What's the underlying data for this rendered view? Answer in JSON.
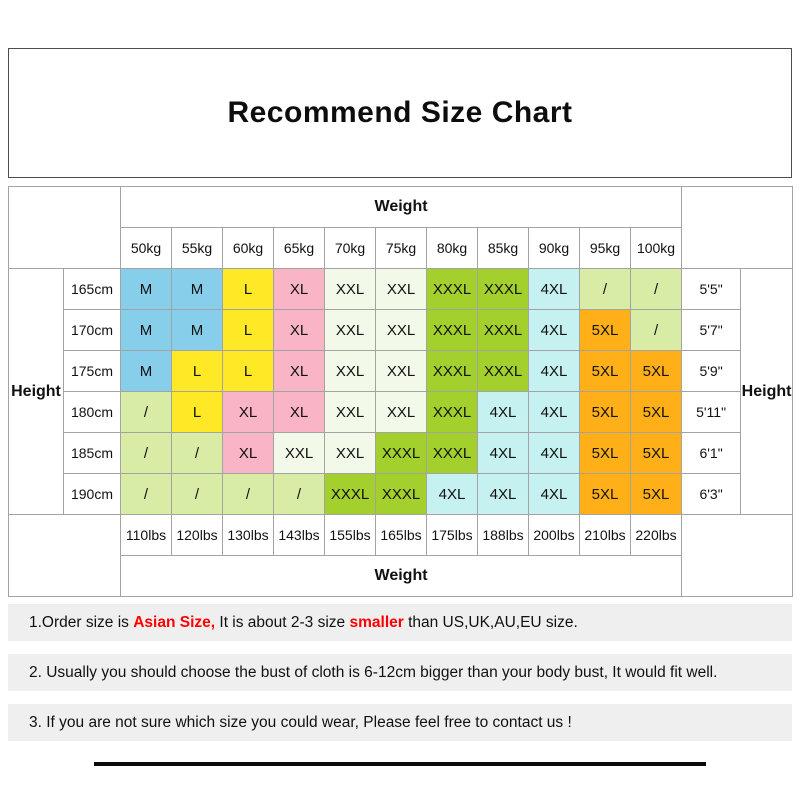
{
  "colors": {
    "note_background": "#EFEFEF",
    "note_highlight": "#FF0000"
  },
  "chart_data": {
    "type": "table",
    "title": "Recommend Size Chart",
    "axis_labels": {
      "weight": "Weight",
      "height": "Height"
    },
    "columns_kg": [
      "50kg",
      "55kg",
      "60kg",
      "65kg",
      "70kg",
      "75kg",
      "80kg",
      "85kg",
      "90kg",
      "95kg",
      "100kg"
    ],
    "columns_lbs": [
      "110lbs",
      "120lbs",
      "130lbs",
      "143lbs",
      "155lbs",
      "165lbs",
      "175lbs",
      "188lbs",
      "200lbs",
      "210lbs",
      "220lbs"
    ],
    "rows": [
      {
        "height_cm": "165cm",
        "height_ft": "5'5\"",
        "sizes": [
          "M",
          "M",
          "L",
          "XL",
          "XXL",
          "XXL",
          "XXXL",
          "XXXL",
          "4XL",
          "/",
          "/"
        ]
      },
      {
        "height_cm": "170cm",
        "height_ft": "5'7\"",
        "sizes": [
          "M",
          "M",
          "L",
          "XL",
          "XXL",
          "XXL",
          "XXXL",
          "XXXL",
          "4XL",
          "5XL",
          "/"
        ]
      },
      {
        "height_cm": "175cm",
        "height_ft": "5'9\"",
        "sizes": [
          "M",
          "L",
          "L",
          "XL",
          "XXL",
          "XXL",
          "XXXL",
          "XXXL",
          "4XL",
          "5XL",
          "5XL"
        ]
      },
      {
        "height_cm": "180cm",
        "height_ft": "5'11\"",
        "sizes": [
          "/",
          "L",
          "XL",
          "XL",
          "XXL",
          "XXL",
          "XXXL",
          "4XL",
          "4XL",
          "5XL",
          "5XL"
        ]
      },
      {
        "height_cm": "185cm",
        "height_ft": "6'1\"",
        "sizes": [
          "/",
          "/",
          "XL",
          "XXL",
          "XXL",
          "XXXL",
          "XXXL",
          "4XL",
          "4XL",
          "5XL",
          "5XL"
        ]
      },
      {
        "height_cm": "190cm",
        "height_ft": "6'3\"",
        "sizes": [
          "/",
          "/",
          "/",
          "/",
          "XXXL",
          "XXXL",
          "4XL",
          "4XL",
          "4XL",
          "5XL",
          "5XL"
        ]
      }
    ],
    "size_colors": {
      "M": "#87CEEB",
      "L": "#FFE926",
      "XL": "#F9B4C6",
      "XXL": "#F2F9E9",
      "XXXL": "#A3D02C",
      "4XL": "#C5F1F0",
      "5XL": "#FFB019",
      "/": "#D9ECA6"
    }
  },
  "notes": [
    {
      "segments": [
        {
          "text": "1.Order size is ",
          "highlight": false
        },
        {
          "text": "Asian Size,",
          "highlight": true
        },
        {
          "text": " It is about 2-3 size ",
          "highlight": false
        },
        {
          "text": "smaller",
          "highlight": true
        },
        {
          "text": " than US,UK,AU,EU size.",
          "highlight": false
        }
      ]
    },
    {
      "segments": [
        {
          "text": "2. Usually you should choose the bust of cloth is 6-12cm bigger than your body bust, It would fit well.",
          "highlight": false
        }
      ]
    },
    {
      "segments": [
        {
          "text": "3. If you are not sure which size you could wear, Please feel free to contact us !",
          "highlight": false
        }
      ]
    }
  ]
}
